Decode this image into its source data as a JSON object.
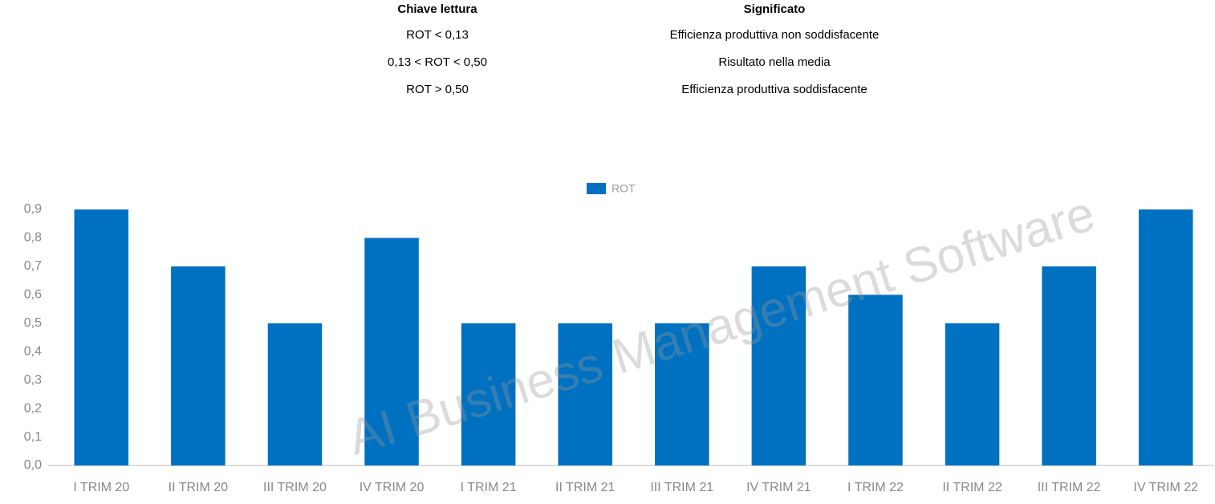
{
  "table": {
    "header": [
      "Chiave lettura",
      "Significato"
    ],
    "rows": [
      [
        "ROT < 0,13",
        "Efficienza produttiva non soddisfacente"
      ],
      [
        "0,13 < ROT < 0,50",
        "Risultato nella media"
      ],
      [
        "ROT > 0,50",
        "Efficienza produttiva soddisfacente"
      ]
    ]
  },
  "watermark": "AI Business Management Software",
  "chart_data": {
    "type": "bar",
    "categories": [
      "I TRIM 20",
      "II TRIM 20",
      "III TRIM 20",
      "IV TRIM 20",
      "I TRIM 21",
      "II TRIM 21",
      "III TRIM 21",
      "IV TRIM 21",
      "I TRIM 22",
      "II TRIM 22",
      "III TRIM 22",
      "IV TRIM 22"
    ],
    "series": [
      {
        "name": "ROT",
        "color": "#0070c0",
        "values": [
          0.9,
          0.7,
          0.5,
          0.8,
          0.5,
          0.5,
          0.5,
          0.7,
          0.6,
          0.5,
          0.7,
          0.9
        ]
      }
    ],
    "ylim": [
      0,
      0.9
    ],
    "yticks": [
      {
        "value": 0,
        "label": "0,0"
      },
      {
        "value": 0.1,
        "label": "0,1"
      },
      {
        "value": 0.2,
        "label": "0,2"
      },
      {
        "value": 0.3,
        "label": "0,3"
      },
      {
        "value": 0.4,
        "label": "0,4"
      },
      {
        "value": 0.5,
        "label": "0,5"
      },
      {
        "value": 0.6,
        "label": "0,6"
      },
      {
        "value": 0.7,
        "label": "0,7"
      },
      {
        "value": 0.8,
        "label": "0,8"
      },
      {
        "value": 0.9,
        "label": "0,9"
      }
    ],
    "grid": false,
    "legend": "top"
  }
}
